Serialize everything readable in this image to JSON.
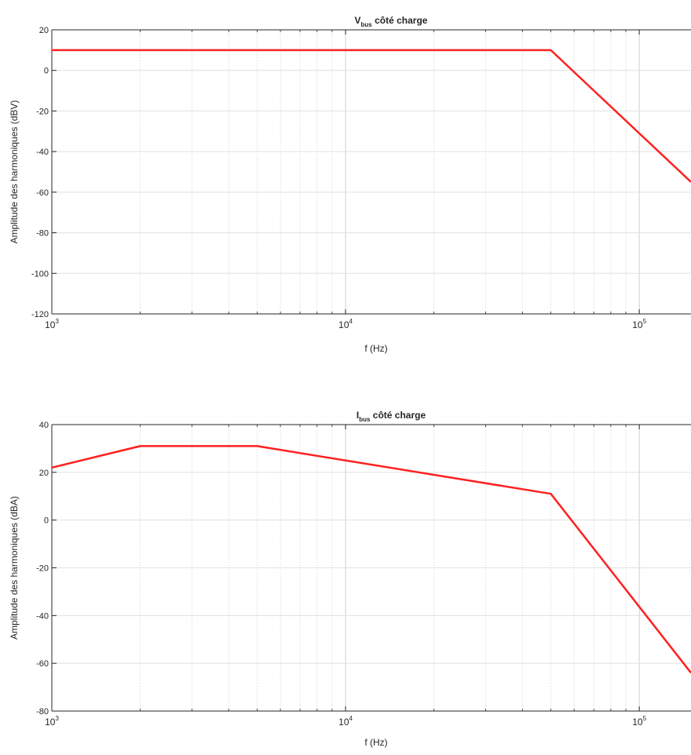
{
  "chart_data": [
    {
      "type": "line",
      "title": {
        "main": "V",
        "sub": "bus",
        "rest": " côté charge"
      },
      "xlabel": "f (Hz)",
      "ylabel": "Amplitude des harmoniques (dBV)",
      "xscale": "log",
      "xlim": [
        1000,
        150000
      ],
      "ylim": [
        -120,
        20
      ],
      "yticks": [
        -120,
        -100,
        -80,
        -60,
        -40,
        -20,
        0,
        20
      ],
      "xticks": [
        {
          "value": 1000,
          "base": "10",
          "exp": "3"
        },
        {
          "value": 10000,
          "base": "10",
          "exp": "4"
        },
        {
          "value": 100000,
          "base": "10",
          "exp": "5"
        }
      ],
      "grid": "major+minor",
      "line_color": "#ff2020",
      "series": [
        {
          "x": [
            1000,
            50000,
            150000
          ],
          "y": [
            10,
            10,
            -55
          ]
        }
      ]
    },
    {
      "type": "line",
      "title": {
        "main": "I",
        "sub": "bus",
        "rest": " côté charge"
      },
      "xlabel": "f (Hz)",
      "ylabel": "Amplitude des harmoniques (dBA)",
      "xscale": "log",
      "xlim": [
        1000,
        150000
      ],
      "ylim": [
        -80,
        40
      ],
      "yticks": [
        -80,
        -60,
        -40,
        -20,
        0,
        20,
        40
      ],
      "xticks": [
        {
          "value": 1000,
          "base": "10",
          "exp": "3"
        },
        {
          "value": 10000,
          "base": "10",
          "exp": "4"
        },
        {
          "value": 100000,
          "base": "10",
          "exp": "5"
        }
      ],
      "grid": "major+minor",
      "line_color": "#ff2020",
      "series": [
        {
          "x": [
            1000,
            2000,
            5000,
            50000,
            150000
          ],
          "y": [
            22,
            31,
            31,
            11,
            -64
          ]
        }
      ]
    }
  ]
}
